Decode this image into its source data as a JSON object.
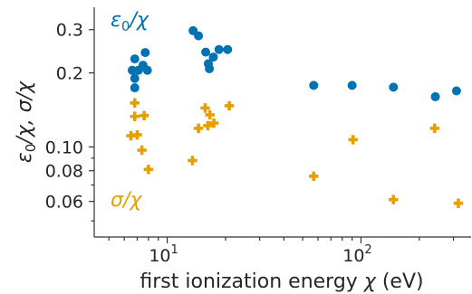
{
  "chart_data": {
    "type": "scatter",
    "xscale": "log",
    "yscale": "log",
    "xlim": [
      4.2,
      370
    ],
    "ylim": [
      0.043,
      0.37
    ],
    "xlabel_text": "first ionization energy ",
    "xlabel_symbol": "χ",
    "xlabel_unit": " (eV)",
    "ylabel_parts": {
      "eps": "ε",
      "sub0": "0",
      "slash_chi": "/χ,  σ/χ"
    },
    "x_ticks": [
      {
        "value": 10,
        "base": "10",
        "exp": "1"
      },
      {
        "value": 100,
        "base": "10",
        "exp": "2"
      }
    ],
    "y_ticks": [
      {
        "value": 0.06,
        "label": "0.06"
      },
      {
        "value": 0.08,
        "label": "0.08"
      },
      {
        "value": 0.1,
        "label": "0.10"
      },
      {
        "value": 0.2,
        "label": "0.2"
      },
      {
        "value": 0.3,
        "label": "0.3"
      }
    ],
    "series": [
      {
        "key": "eps",
        "label_main": "ε",
        "label_sub": "0",
        "label_tail": "/χ",
        "color": "#0072B2",
        "marker": "circle",
        "points": [
          {
            "x": 6.6,
            "y": 0.205
          },
          {
            "x": 6.8,
            "y": 0.228
          },
          {
            "x": 6.8,
            "y": 0.19
          },
          {
            "x": 6.8,
            "y": 0.174
          },
          {
            "x": 7.1,
            "y": 0.205
          },
          {
            "x": 7.5,
            "y": 0.215
          },
          {
            "x": 7.7,
            "y": 0.242
          },
          {
            "x": 7.9,
            "y": 0.205
          },
          {
            "x": 13.6,
            "y": 0.297
          },
          {
            "x": 14.5,
            "y": 0.283
          },
          {
            "x": 15.8,
            "y": 0.243
          },
          {
            "x": 16.3,
            "y": 0.218
          },
          {
            "x": 17.3,
            "y": 0.232
          },
          {
            "x": 16.5,
            "y": 0.208
          },
          {
            "x": 18.5,
            "y": 0.249
          },
          {
            "x": 20.5,
            "y": 0.249
          },
          {
            "x": 57,
            "y": 0.178
          },
          {
            "x": 90,
            "y": 0.178
          },
          {
            "x": 147,
            "y": 0.175
          },
          {
            "x": 242,
            "y": 0.16
          },
          {
            "x": 311,
            "y": 0.169
          }
        ]
      },
      {
        "key": "sigma",
        "label_main": "σ",
        "label_sub": "",
        "label_tail": "/χ",
        "color": "#E69F00",
        "marker": "plus",
        "points": [
          {
            "x": 6.8,
            "y": 0.151
          },
          {
            "x": 6.8,
            "y": 0.133
          },
          {
            "x": 6.5,
            "y": 0.111
          },
          {
            "x": 7.0,
            "y": 0.112
          },
          {
            "x": 7.6,
            "y": 0.134
          },
          {
            "x": 7.4,
            "y": 0.097
          },
          {
            "x": 8.0,
            "y": 0.081
          },
          {
            "x": 13.5,
            "y": 0.088
          },
          {
            "x": 14.5,
            "y": 0.119
          },
          {
            "x": 15.7,
            "y": 0.144
          },
          {
            "x": 16.6,
            "y": 0.135
          },
          {
            "x": 16.2,
            "y": 0.122
          },
          {
            "x": 17.4,
            "y": 0.125
          },
          {
            "x": 20.9,
            "y": 0.147
          },
          {
            "x": 57,
            "y": 0.076
          },
          {
            "x": 91,
            "y": 0.107
          },
          {
            "x": 147,
            "y": 0.061
          },
          {
            "x": 240,
            "y": 0.119
          },
          {
            "x": 318,
            "y": 0.059
          }
        ]
      }
    ]
  }
}
